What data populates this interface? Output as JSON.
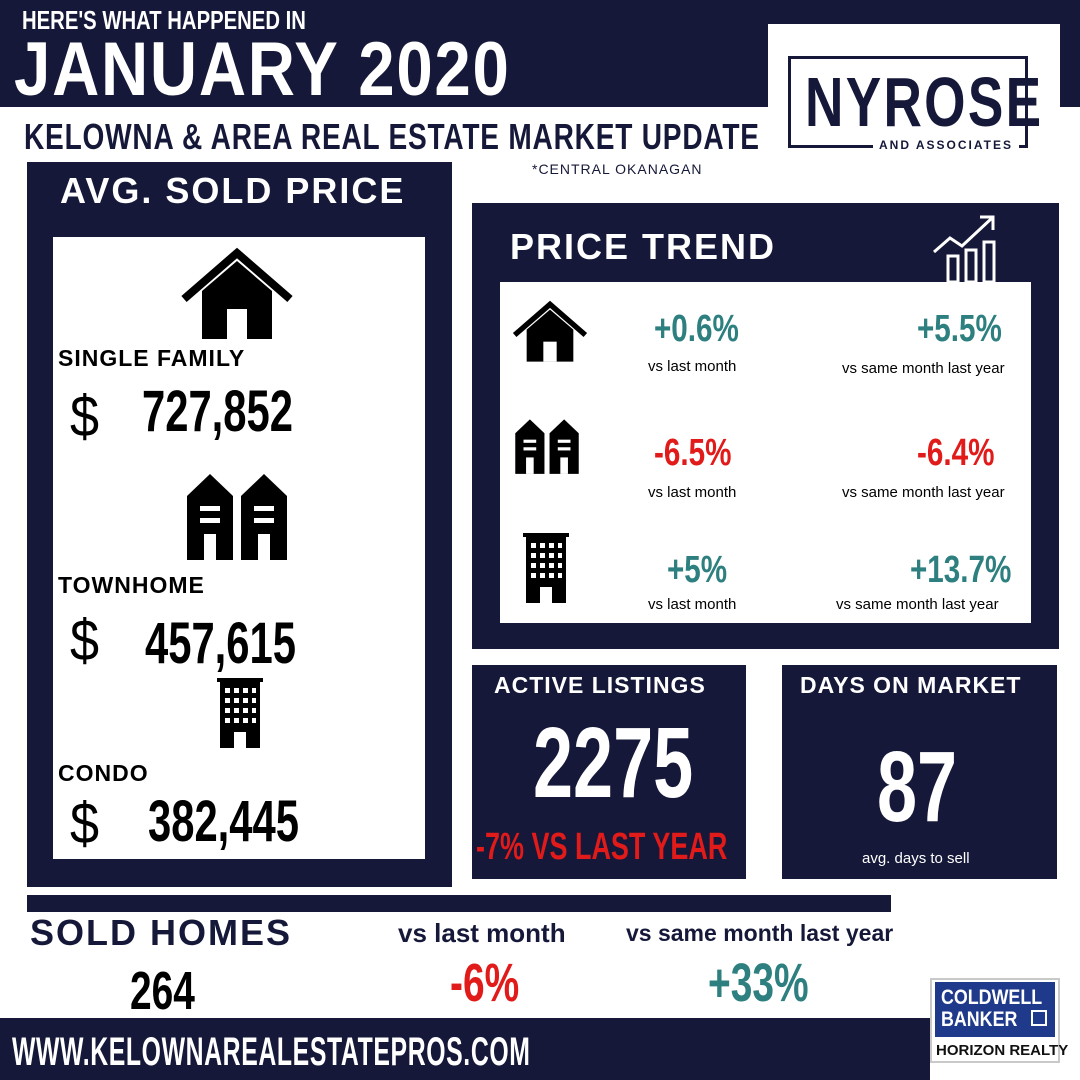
{
  "header": {
    "kicker": "HERE'S WHAT HAPPENED IN",
    "month": "JANUARY 2020",
    "subtitle": "KELOWNA &  AREA REAL ESTATE MARKET UPDATE",
    "region_note": "*CENTRAL OKANAGAN"
  },
  "logo": {
    "name": "NYROSE",
    "tagline": "AND ASSOCIATES"
  },
  "avg_sold_price": {
    "title": "AVG. SOLD PRICE",
    "items": [
      {
        "label": "SINGLE FAMILY",
        "currency": "$",
        "value": "727,852",
        "icon": "house-icon"
      },
      {
        "label": "TOWNHOME",
        "currency": "$",
        "value": "457,615",
        "icon": "townhouse-icon"
      },
      {
        "label": "CONDO",
        "currency": "$",
        "value": "382,445",
        "icon": "condo-building-icon"
      }
    ]
  },
  "price_trend": {
    "title": "PRICE TREND",
    "icon": "trend-chart-icon",
    "rows": [
      {
        "icon": "house-icon",
        "mom": "+0.6%",
        "mom_label": "vs last month",
        "yoy": "+5.5%",
        "yoy_label": "vs same month last year",
        "mom_color": "#2e7f7f",
        "yoy_color": "#2e7f7f"
      },
      {
        "icon": "townhouse-icon",
        "mom": "-6.5%",
        "mom_label": "vs last month",
        "yoy": "-6.4%",
        "yoy_label": "vs same month last year",
        "mom_color": "#e11a1a",
        "yoy_color": "#e11a1a"
      },
      {
        "icon": "condo-building-icon",
        "mom": "+5%",
        "mom_label": "vs last month",
        "yoy": "+13.7%",
        "yoy_label": "vs same month last year",
        "mom_color": "#2e7f7f",
        "yoy_color": "#2e7f7f"
      }
    ]
  },
  "active_listings": {
    "title": "ACTIVE LISTINGS",
    "value": "2275",
    "change": "-7% VS LAST YEAR"
  },
  "days_on_market": {
    "title": "DAYS ON MARKET",
    "value": "87",
    "caption": "avg. days to sell"
  },
  "sold_homes": {
    "title": "SOLD HOMES",
    "value": "264",
    "mom_label": "vs last month",
    "mom": "-6%",
    "yoy_label": "vs same month last year",
    "yoy": "+33%"
  },
  "footer": {
    "url": "WWW.KELOWNAREALESTATEPROS.COM",
    "brokerage_line1": "COLDWELL",
    "brokerage_line2": "BANKER",
    "brokerage_name": "HORIZON REALTY"
  },
  "colors": {
    "navy": "#151838",
    "positive": "#2e7f7f",
    "negative": "#e11a1a"
  }
}
